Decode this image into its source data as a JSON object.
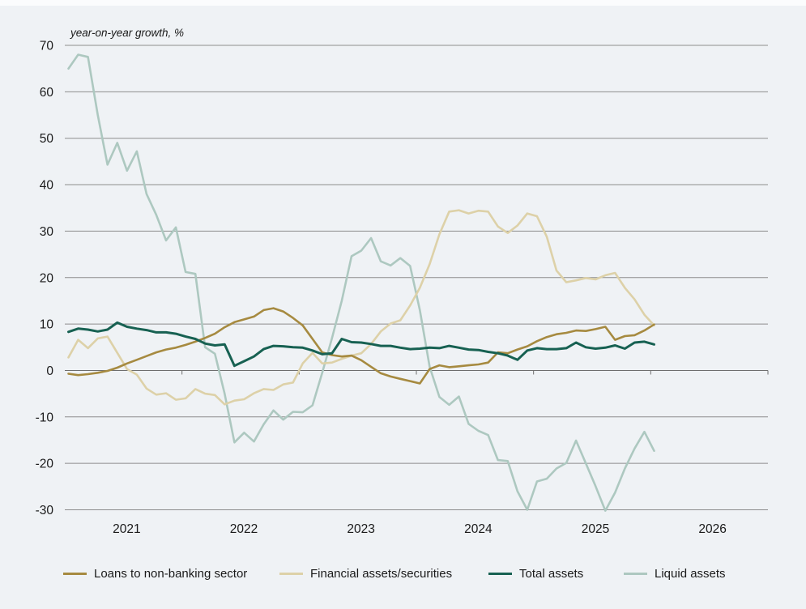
{
  "page": {
    "background_color": "#eff2f5",
    "text_color": "#1a1a1a",
    "gridline_color": "#8d8d8d",
    "zero_line_color": "#6e6e6e"
  },
  "chart": {
    "title": "year-on-year growth, %"
  },
  "chart_data": {
    "type": "line",
    "title": "year-on-year growth, %",
    "frequency": "monthly",
    "x_start": "2021-01",
    "x_end": "2026-01",
    "x_tick_labels": [
      "2021",
      "2022",
      "2023",
      "2024",
      "2025",
      "2026"
    ],
    "y_ticks": [
      70,
      60,
      50,
      40,
      30,
      20,
      10,
      0,
      -10,
      -20,
      -30
    ],
    "ylim": [
      -30,
      70
    ],
    "grid": "horizontal",
    "legend_position": "bottom",
    "series": [
      {
        "name": "Loans to non-banking sector",
        "color": "#a68a40",
        "values": [
          -0.7,
          -1.0,
          -0.8,
          -0.5,
          -0.1,
          0.6,
          1.5,
          2.3,
          3.1,
          3.9,
          4.5,
          4.9,
          5.5,
          6.2,
          7.0,
          7.9,
          9.3,
          10.4,
          11.0,
          11.6,
          13.0,
          13.4,
          12.7,
          11.3,
          9.7,
          6.8,
          3.9,
          3.3,
          3.0,
          3.2,
          2.2,
          0.8,
          -0.6,
          -1.3,
          -1.8,
          -2.3,
          -2.8,
          0.3,
          1.1,
          0.7,
          0.9,
          1.1,
          1.3,
          1.7,
          3.9,
          3.7,
          4.5,
          5.2,
          6.3,
          7.2,
          7.8,
          8.1,
          8.6,
          8.5,
          8.9,
          9.4,
          6.6,
          7.4,
          7.6,
          8.6,
          9.9
        ]
      },
      {
        "name": "Financial assets/securities",
        "color": "#ddd1a8",
        "values": [
          2.8,
          6.6,
          4.8,
          6.9,
          7.3,
          3.8,
          0.3,
          -0.9,
          -3.9,
          -5.2,
          -4.9,
          -6.3,
          -6.0,
          -4.0,
          -5.0,
          -5.3,
          -7.3,
          -6.5,
          -6.2,
          -4.9,
          -4.0,
          -4.2,
          -3.0,
          -2.6,
          1.5,
          3.8,
          1.5,
          1.7,
          2.5,
          3.2,
          3.7,
          5.7,
          8.4,
          10.1,
          10.8,
          14.0,
          17.8,
          22.9,
          29.3,
          34.2,
          34.5,
          33.8,
          34.4,
          34.2,
          31.0,
          29.6,
          31.2,
          33.8,
          33.2,
          28.8,
          21.5,
          19.0,
          19.4,
          19.9,
          19.6,
          20.5,
          21.0,
          17.8,
          15.3,
          12.0,
          9.7
        ]
      },
      {
        "name": "Total assets",
        "color": "#176152",
        "values": [
          8.3,
          9.0,
          8.8,
          8.4,
          8.8,
          10.3,
          9.4,
          9.0,
          8.7,
          8.2,
          8.2,
          7.9,
          7.3,
          6.8,
          5.8,
          5.4,
          5.6,
          1.0,
          2.0,
          3.0,
          4.6,
          5.3,
          5.2,
          5.0,
          4.9,
          4.3,
          3.5,
          3.7,
          6.8,
          6.1,
          6.0,
          5.7,
          5.3,
          5.3,
          4.9,
          4.6,
          4.7,
          4.9,
          4.8,
          5.3,
          4.9,
          4.5,
          4.4,
          4.0,
          3.7,
          3.2,
          2.3,
          4.3,
          4.8,
          4.6,
          4.6,
          4.8,
          6.0,
          5.0,
          4.7,
          4.9,
          5.4,
          4.7,
          6.0,
          6.2,
          5.6
        ]
      },
      {
        "name": "Liquid assets",
        "color": "#adc8c0",
        "values": [
          65.0,
          68.0,
          67.5,
          55.0,
          44.3,
          49.0,
          43.0,
          47.2,
          38.0,
          33.5,
          28.0,
          30.8,
          21.2,
          20.8,
          5.0,
          3.6,
          -5.0,
          -15.5,
          -13.4,
          -15.3,
          -11.6,
          -8.6,
          -10.6,
          -8.9,
          -9.0,
          -7.5,
          -0.5,
          7.0,
          15.0,
          24.6,
          25.8,
          28.5,
          23.5,
          22.6,
          24.2,
          22.5,
          13.0,
          0.8,
          -5.7,
          -7.4,
          -5.6,
          -11.5,
          -13.0,
          -13.9,
          -19.3,
          -19.5,
          -26.0,
          -30.0,
          -23.9,
          -23.3,
          -21.1,
          -19.9,
          -15.1,
          -20.0,
          -24.9,
          -30.2,
          -26.3,
          -21.1,
          -16.8,
          -13.2,
          -17.3
        ]
      }
    ]
  },
  "legend": {
    "items": [
      "Loans to non-banking sector",
      "Financial assets/securities",
      "Total assets",
      "Liquid assets"
    ]
  }
}
